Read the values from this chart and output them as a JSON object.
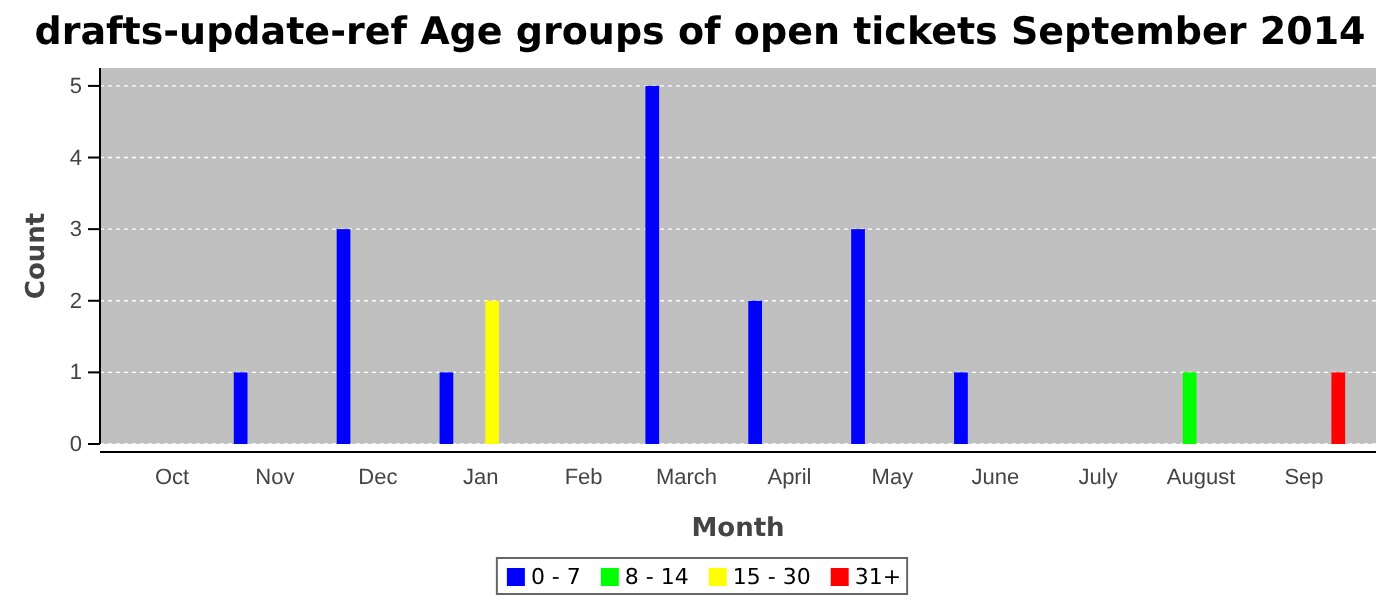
{
  "chart_data": {
    "type": "bar",
    "title": "drafts-update-ref Age groups of open tickets September 2014",
    "xlabel": "Month",
    "ylabel": "Count",
    "categories": [
      "Oct",
      "Nov",
      "Dec",
      "Jan",
      "Feb",
      "March",
      "April",
      "May",
      "June",
      "July",
      "August",
      "Sep"
    ],
    "series": [
      {
        "name": "0 - 7",
        "color": "#0000ff",
        "values": [
          0,
          1,
          3,
          1,
          0,
          5,
          2,
          3,
          1,
          0,
          0,
          0
        ]
      },
      {
        "name": "8 - 14",
        "color": "#00ff00",
        "values": [
          0,
          0,
          0,
          0,
          0,
          0,
          0,
          0,
          0,
          0,
          1,
          0
        ]
      },
      {
        "name": "15 - 30",
        "color": "#ffff00",
        "values": [
          0,
          0,
          0,
          2,
          0,
          0,
          0,
          0,
          0,
          0,
          0,
          0
        ]
      },
      {
        "name": "31+",
        "color": "#ff0000",
        "values": [
          0,
          0,
          0,
          0,
          0,
          0,
          0,
          0,
          0,
          0,
          0,
          1
        ]
      }
    ],
    "ylim": [
      0,
      5.25
    ],
    "yticks": [
      0,
      1,
      2,
      3,
      4,
      5
    ],
    "grid": "y",
    "legend": "bottom"
  }
}
